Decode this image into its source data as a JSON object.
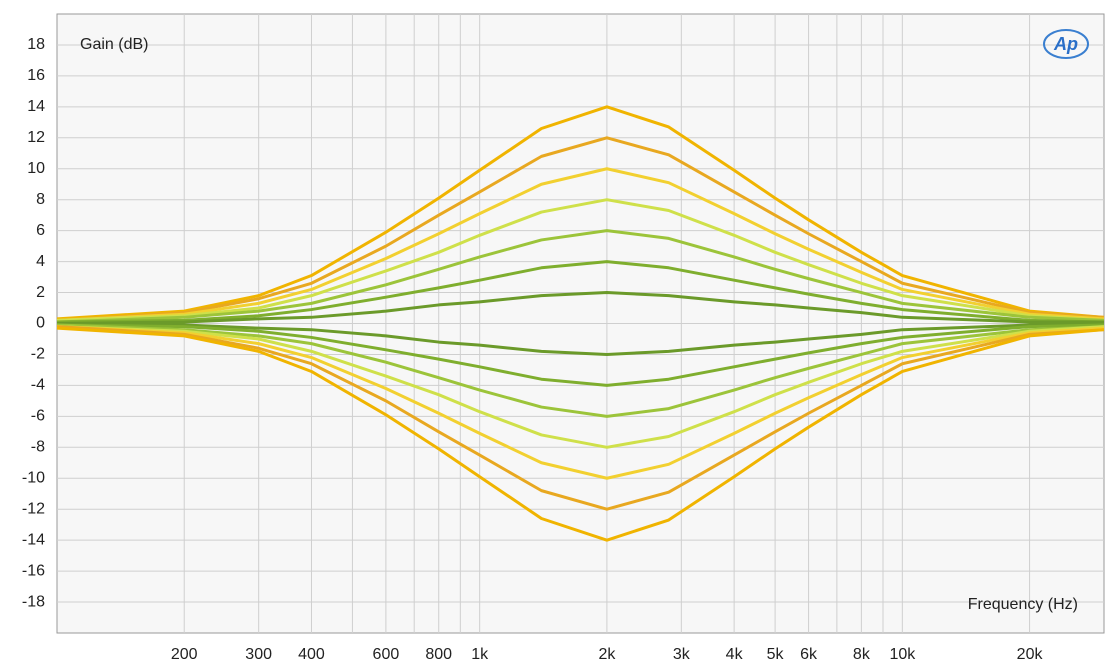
{
  "chart_data": {
    "type": "line",
    "y_label": "Gain (dB)",
    "x_label": "Frequency (Hz)",
    "logo": "Ap",
    "x_log": true,
    "grid": true,
    "xlim": [
      100,
      30000
    ],
    "ylim": [
      -20,
      20
    ],
    "yticks": [
      -18,
      -16,
      -14,
      -12,
      -10,
      -8,
      -6,
      -4,
      -2,
      0,
      2,
      4,
      6,
      8,
      10,
      12,
      14,
      16,
      18
    ],
    "xticks": [
      200,
      300,
      400,
      600,
      800,
      {
        "value": 1000,
        "label": "1k"
      },
      {
        "value": 2000,
        "label": "2k"
      },
      {
        "value": 3000,
        "label": "3k"
      },
      {
        "value": 4000,
        "label": "4k"
      },
      {
        "value": 5000,
        "label": "5k"
      },
      {
        "value": 6000,
        "label": "6k"
      },
      {
        "value": 8000,
        "label": "8k"
      },
      {
        "value": 10000,
        "label": "10k"
      },
      {
        "value": 20000,
        "label": "20k"
      }
    ],
    "xminor": [
      500,
      700,
      900,
      7000,
      9000
    ],
    "x": [
      100,
      200,
      300,
      400,
      600,
      800,
      1000,
      1400,
      2000,
      2800,
      4000,
      5000,
      6000,
      8000,
      10000,
      20000,
      30000
    ],
    "series": [
      {
        "color": "#f0b400",
        "values": [
          0.3,
          0.8,
          1.8,
          3.1,
          5.9,
          8.1,
          9.9,
          12.6,
          14,
          12.7,
          9.9,
          8.1,
          6.7,
          4.6,
          3.1,
          0.8,
          0.4
        ]
      },
      {
        "color": "#e8a820",
        "values": [
          0.2,
          0.7,
          1.6,
          2.6,
          5.0,
          7.0,
          8.5,
          10.8,
          12,
          10.9,
          8.5,
          7.0,
          5.8,
          4.0,
          2.6,
          0.7,
          0.4
        ]
      },
      {
        "color": "#f2d030",
        "values": [
          0.2,
          0.6,
          1.3,
          2.2,
          4.2,
          5.8,
          7.1,
          9.0,
          10,
          9.1,
          7.1,
          5.8,
          4.8,
          3.3,
          2.2,
          0.6,
          0.3
        ]
      },
      {
        "color": "#cfe04a",
        "values": [
          0.2,
          0.5,
          1.0,
          1.8,
          3.4,
          4.6,
          5.7,
          7.2,
          8,
          7.3,
          5.7,
          4.6,
          3.8,
          2.6,
          1.8,
          0.5,
          0.2
        ]
      },
      {
        "color": "#9cc43a",
        "values": [
          0.1,
          0.4,
          0.8,
          1.3,
          2.5,
          3.5,
          4.3,
          5.4,
          6,
          5.5,
          4.3,
          3.5,
          2.9,
          2.0,
          1.3,
          0.4,
          0.2
        ]
      },
      {
        "color": "#7fae2e",
        "values": [
          0.1,
          0.2,
          0.5,
          0.9,
          1.7,
          2.3,
          2.8,
          3.6,
          4,
          3.6,
          2.8,
          2.3,
          1.9,
          1.3,
          0.9,
          0.2,
          0.1
        ]
      },
      {
        "color": "#6b9a2a",
        "values": [
          0,
          0.1,
          0.3,
          0.4,
          0.8,
          1.2,
          1.4,
          1.8,
          2,
          1.8,
          1.4,
          1.2,
          1.0,
          0.7,
          0.4,
          0.1,
          0.1
        ]
      },
      {
        "color": "#6b9a2a",
        "values": [
          0,
          -0.1,
          -0.3,
          -0.4,
          -0.8,
          -1.2,
          -1.4,
          -1.8,
          -2,
          -1.8,
          -1.4,
          -1.2,
          -1.0,
          -0.7,
          -0.4,
          -0.1,
          -0.1
        ]
      },
      {
        "color": "#7fae2e",
        "values": [
          -0.1,
          -0.2,
          -0.5,
          -0.9,
          -1.7,
          -2.3,
          -2.8,
          -3.6,
          -4,
          -3.6,
          -2.8,
          -2.3,
          -1.9,
          -1.3,
          -0.9,
          -0.2,
          -0.1
        ]
      },
      {
        "color": "#9cc43a",
        "values": [
          -0.1,
          -0.4,
          -0.8,
          -1.3,
          -2.5,
          -3.5,
          -4.3,
          -5.4,
          -6,
          -5.5,
          -4.3,
          -3.5,
          -2.9,
          -2.0,
          -1.3,
          -0.4,
          -0.2
        ]
      },
      {
        "color": "#cfe04a",
        "values": [
          -0.2,
          -0.5,
          -1.0,
          -1.8,
          -3.4,
          -4.6,
          -5.7,
          -7.2,
          -8,
          -7.3,
          -5.7,
          -4.6,
          -3.8,
          -2.6,
          -1.8,
          -0.5,
          -0.2
        ]
      },
      {
        "color": "#f2d030",
        "values": [
          -0.2,
          -0.6,
          -1.3,
          -2.2,
          -4.2,
          -5.8,
          -7.1,
          -9.0,
          -10,
          -9.1,
          -7.1,
          -5.8,
          -4.8,
          -3.3,
          -2.2,
          -0.6,
          -0.3
        ]
      },
      {
        "color": "#e8a820",
        "values": [
          -0.2,
          -0.7,
          -1.6,
          -2.6,
          -5.0,
          -7.0,
          -8.5,
          -10.8,
          -12,
          -10.9,
          -8.5,
          -7.0,
          -5.8,
          -4.0,
          -2.6,
          -0.7,
          -0.4
        ]
      },
      {
        "color": "#f0b400",
        "values": [
          -0.3,
          -0.8,
          -1.8,
          -3.1,
          -5.9,
          -8.1,
          -9.9,
          -12.6,
          -14,
          -12.7,
          -9.9,
          -8.1,
          -6.7,
          -4.6,
          -3.1,
          -0.8,
          -0.4
        ]
      }
    ]
  }
}
